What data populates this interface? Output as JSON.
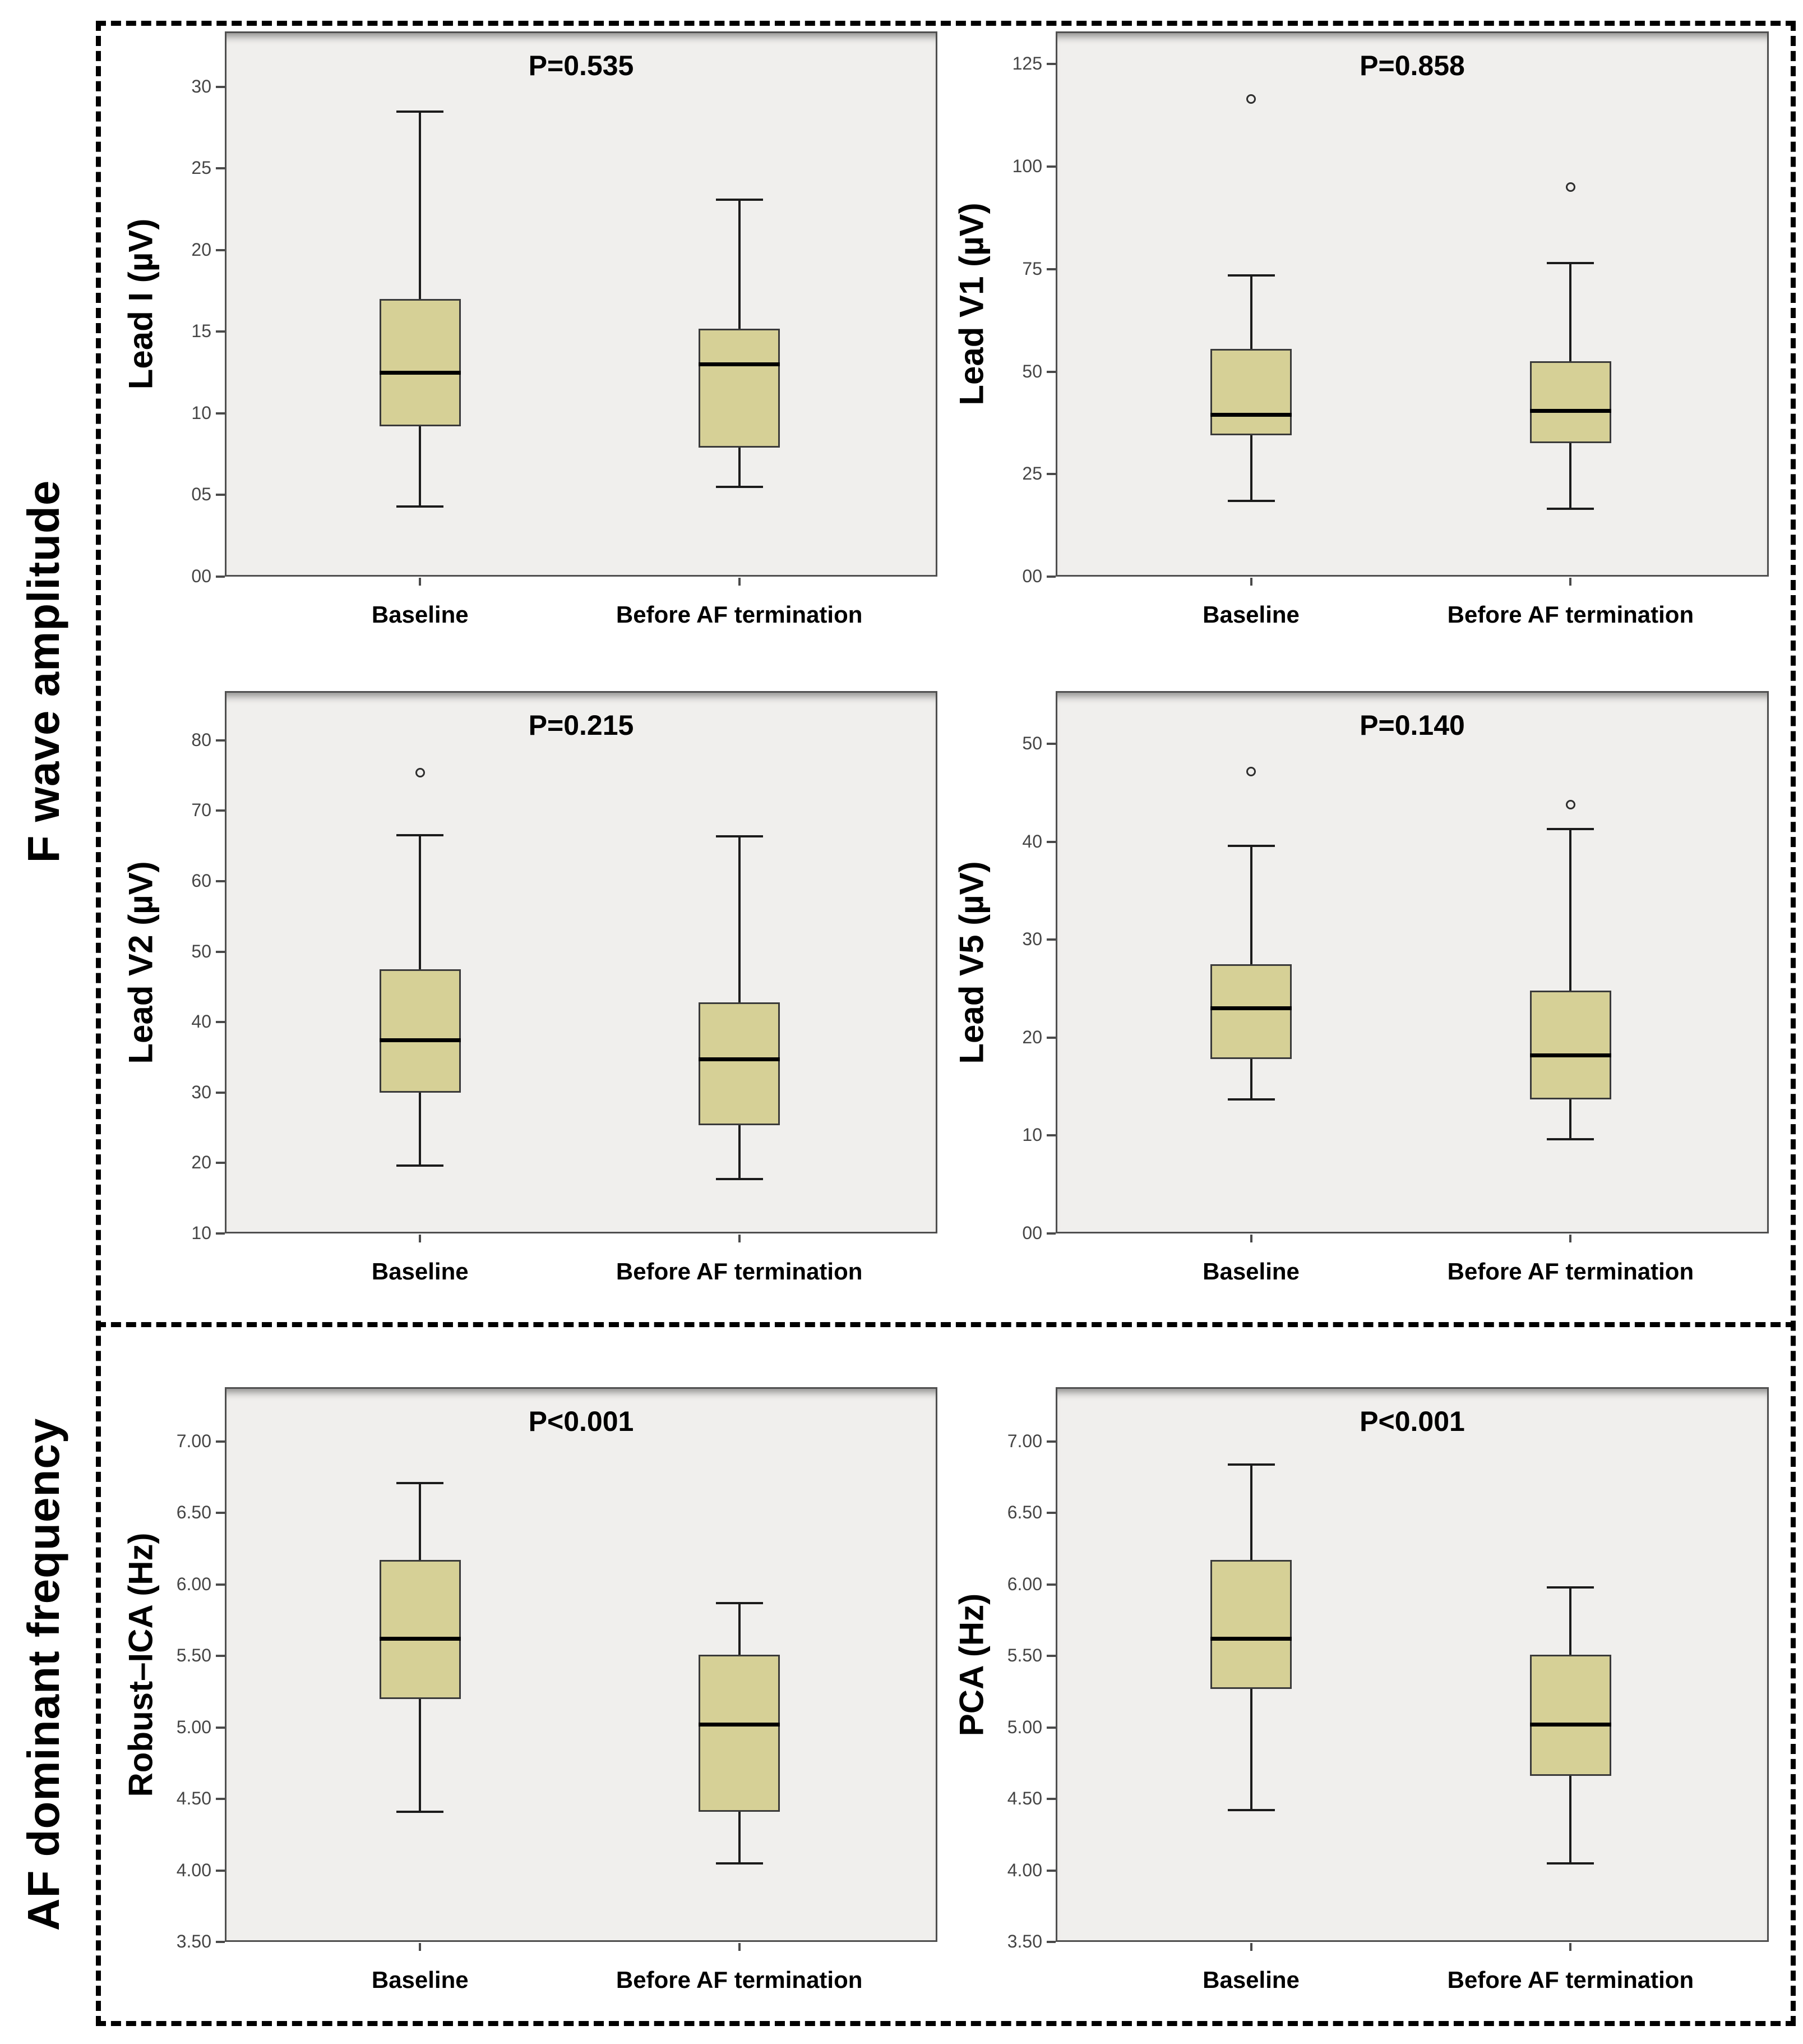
{
  "figure": {
    "sections": [
      {
        "label": "F wave amplitude"
      },
      {
        "label": "AF dominant frequency"
      }
    ]
  },
  "colors": {
    "box_fill": "#d6d096",
    "box_border": "#3a3a3a",
    "median": "#000000",
    "whisker": "#1b1b1b",
    "plot_background": "#f0efed",
    "plot_border": "#4f4f4f",
    "tick_text": "#454545",
    "frame_dash": "#000000"
  },
  "chart_data": [
    {
      "type": "box",
      "panel": "lead-i",
      "section": "F wave amplitude",
      "ylabel": "Lead I (µV)",
      "p_label": "P=0.535",
      "categories": [
        "Baseline",
        "Before AF termination"
      ],
      "ylim": [
        0,
        33.4
      ],
      "yticks": {
        "values": [
          0,
          5,
          10,
          15,
          20,
          25,
          30
        ],
        "labels": [
          "00",
          "05",
          "10",
          "15",
          "20",
          "25",
          "30"
        ]
      },
      "legend": "none",
      "grid": false,
      "series": [
        {
          "name": "Baseline",
          "whisker_low": 4.3,
          "q1": 9.2,
          "median": 12.5,
          "q3": 17.0,
          "whisker_high": 28.5,
          "outliers": []
        },
        {
          "name": "Before AF termination",
          "whisker_low": 5.5,
          "q1": 7.9,
          "median": 13.0,
          "q3": 15.2,
          "whisker_high": 23.1,
          "outliers": []
        }
      ]
    },
    {
      "type": "box",
      "panel": "lead-v1",
      "section": "F wave amplitude",
      "ylabel": "Lead V1 (µV)",
      "p_label": "P=0.858",
      "categories": [
        "Baseline",
        "Before AF termination"
      ],
      "ylim": [
        0,
        133
      ],
      "yticks": {
        "values": [
          0,
          25,
          50,
          75,
          100,
          125
        ],
        "labels": [
          "00",
          "25",
          "50",
          "75",
          "100",
          "125"
        ]
      },
      "legend": "none",
      "grid": false,
      "series": [
        {
          "name": "Baseline",
          "whisker_low": 18.5,
          "q1": 34.5,
          "median": 39.5,
          "q3": 55.5,
          "whisker_high": 73.5,
          "outliers": [
            116.5
          ]
        },
        {
          "name": "Before AF termination",
          "whisker_low": 16.5,
          "q1": 32.5,
          "median": 40.5,
          "q3": 52.5,
          "whisker_high": 76.5,
          "outliers": [
            95.0
          ]
        }
      ]
    },
    {
      "type": "box",
      "panel": "lead-v2",
      "section": "F wave amplitude",
      "ylabel": "Lead V2 (µV)",
      "p_label": "P=0.215",
      "categories": [
        "Baseline",
        "Before AF termination"
      ],
      "ylim": [
        10,
        87
      ],
      "yticks": {
        "values": [
          10,
          20,
          30,
          40,
          50,
          60,
          70,
          80
        ],
        "labels": [
          "10",
          "20",
          "30",
          "40",
          "50",
          "60",
          "70",
          "80"
        ]
      },
      "legend": "none",
      "grid": false,
      "series": [
        {
          "name": "Baseline",
          "whisker_low": 19.6,
          "q1": 30.0,
          "median": 37.4,
          "q3": 47.5,
          "whisker_high": 66.5,
          "outliers": [
            75.4
          ]
        },
        {
          "name": "Before AF termination",
          "whisker_low": 17.7,
          "q1": 25.4,
          "median": 34.7,
          "q3": 42.8,
          "whisker_high": 66.4,
          "outliers": []
        }
      ]
    },
    {
      "type": "box",
      "panel": "lead-v5",
      "section": "F wave amplitude",
      "ylabel": "Lead V5 (µV)",
      "p_label": "P=0.140",
      "categories": [
        "Baseline",
        "Before AF termination"
      ],
      "ylim": [
        0,
        55.4
      ],
      "yticks": {
        "values": [
          0,
          10,
          20,
          30,
          40,
          50
        ],
        "labels": [
          "00",
          "10",
          "20",
          "30",
          "40",
          "50"
        ]
      },
      "legend": "none",
      "grid": false,
      "series": [
        {
          "name": "Baseline",
          "whisker_low": 13.7,
          "q1": 17.8,
          "median": 23.0,
          "q3": 27.5,
          "whisker_high": 39.6,
          "outliers": [
            47.2
          ]
        },
        {
          "name": "Before AF termination",
          "whisker_low": 9.6,
          "q1": 13.7,
          "median": 18.2,
          "q3": 24.8,
          "whisker_high": 41.3,
          "outliers": [
            43.8
          ]
        }
      ]
    },
    {
      "type": "box",
      "panel": "robust-ica",
      "section": "AF dominant frequency",
      "ylabel": "Robust–ICA (Hz)",
      "p_label": "P<0.001",
      "categories": [
        "Baseline",
        "Before AF termination"
      ],
      "ylim": [
        3.5,
        7.38
      ],
      "yticks": {
        "values": [
          3.5,
          4.0,
          4.5,
          5.0,
          5.5,
          6.0,
          6.5,
          7.0
        ],
        "labels": [
          "3.50",
          "4.00",
          "4.50",
          "5.00",
          "5.50",
          "6.00",
          "6.50",
          "7.00"
        ]
      },
      "legend": "none",
      "grid": false,
      "series": [
        {
          "name": "Baseline",
          "whisker_low": 4.41,
          "q1": 5.2,
          "median": 5.62,
          "q3": 6.17,
          "whisker_high": 6.71,
          "outliers": []
        },
        {
          "name": "Before AF termination",
          "whisker_low": 4.05,
          "q1": 4.41,
          "median": 5.02,
          "q3": 5.51,
          "whisker_high": 5.87,
          "outliers": []
        }
      ]
    },
    {
      "type": "box",
      "panel": "pca",
      "section": "AF dominant frequency",
      "ylabel": "PCA (Hz)",
      "p_label": "P<0.001",
      "categories": [
        "Baseline",
        "Before AF termination"
      ],
      "ylim": [
        3.5,
        7.38
      ],
      "yticks": {
        "values": [
          3.5,
          4.0,
          4.5,
          5.0,
          5.5,
          6.0,
          6.5,
          7.0
        ],
        "labels": [
          "3.50",
          "4.00",
          "4.50",
          "5.00",
          "5.50",
          "6.00",
          "6.50",
          "7.00"
        ]
      },
      "legend": "none",
      "grid": false,
      "series": [
        {
          "name": "Baseline",
          "whisker_low": 4.42,
          "q1": 5.27,
          "median": 5.62,
          "q3": 6.17,
          "whisker_high": 6.84,
          "outliers": []
        },
        {
          "name": "Before AF termination",
          "whisker_low": 4.05,
          "q1": 4.66,
          "median": 5.02,
          "q3": 5.51,
          "whisker_high": 5.98,
          "outliers": []
        }
      ]
    }
  ]
}
